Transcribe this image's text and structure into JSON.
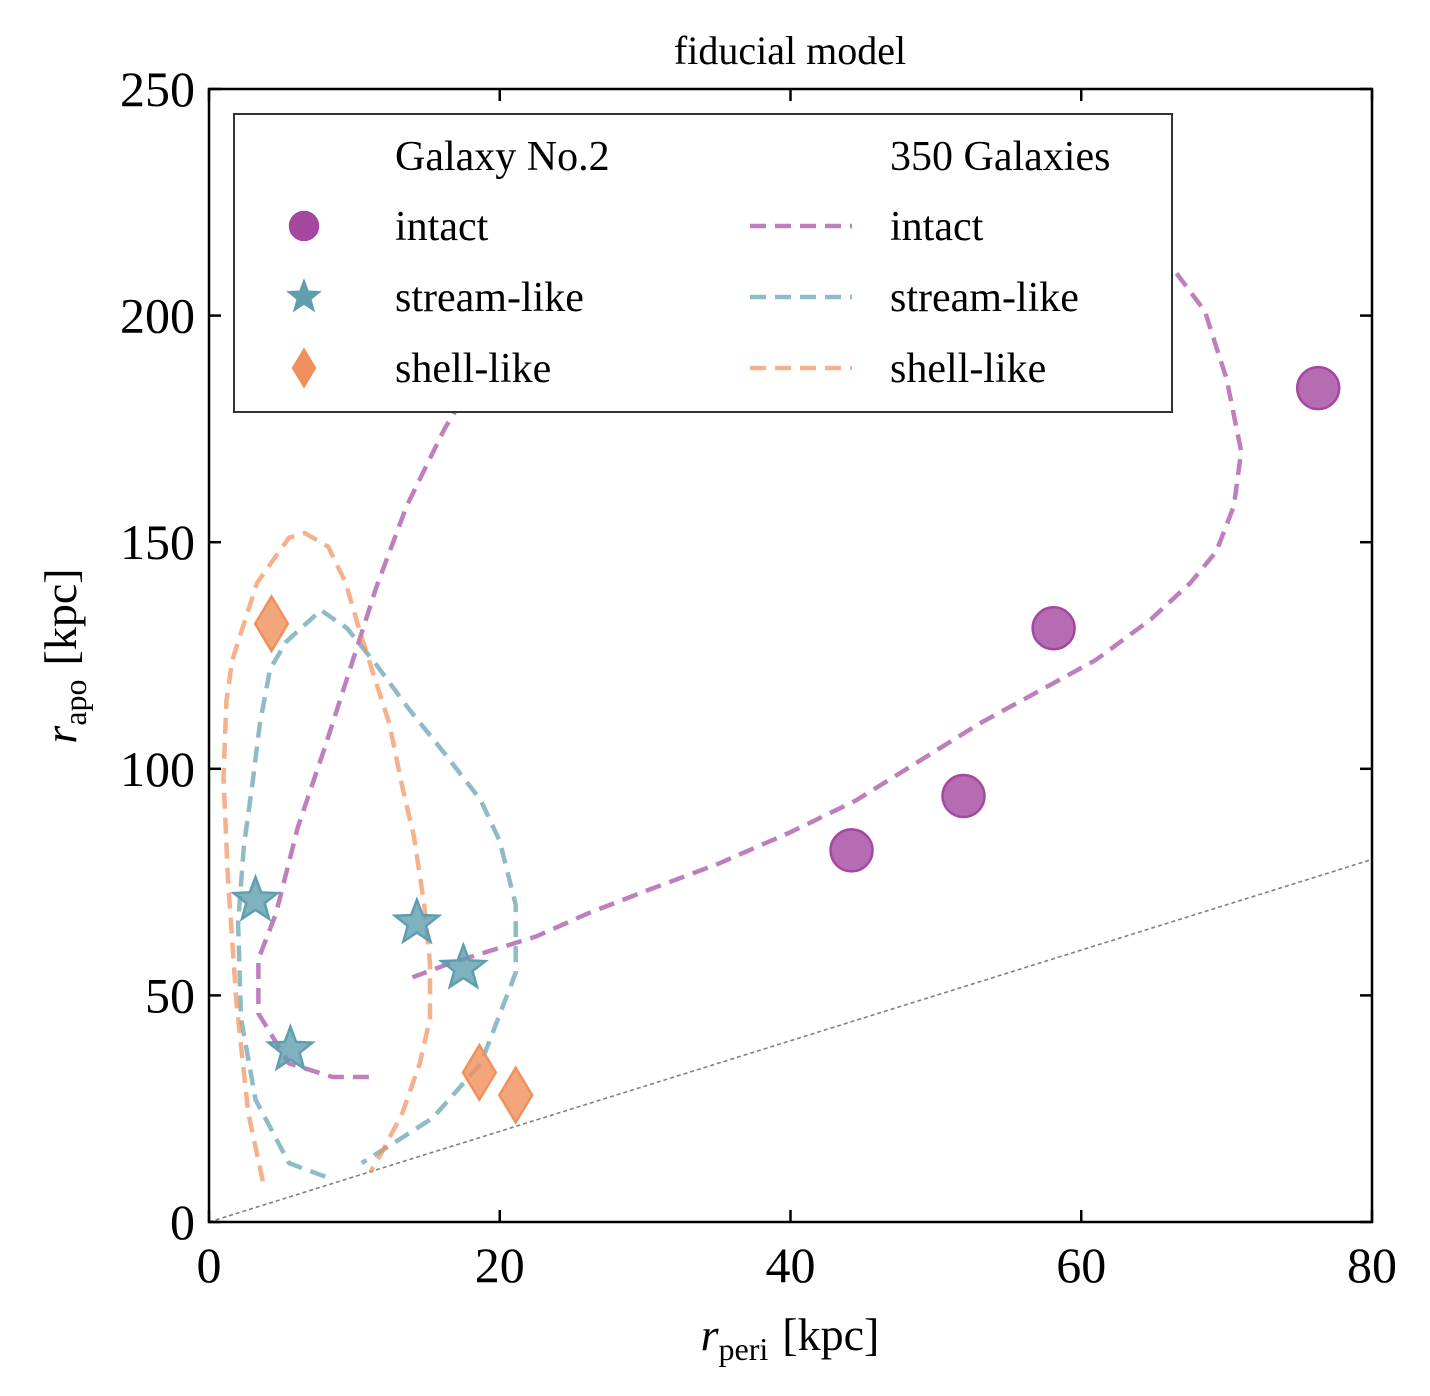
{
  "chart_data": {
    "type": "scatter",
    "title": "fiducial model",
    "xlabel": {
      "symbol": "r",
      "subscript": "peri",
      "unit": "[kpc]"
    },
    "ylabel": {
      "symbol": "r",
      "subscript": "apo",
      "unit": "[kpc]"
    },
    "xlim": [
      0,
      80
    ],
    "ylim": [
      0,
      250
    ],
    "xticks": [
      0,
      20,
      40,
      60,
      80
    ],
    "yticks": [
      0,
      50,
      100,
      150,
      200,
      250
    ],
    "grid": false,
    "legend": {
      "placement": "top-left",
      "columns": [
        {
          "header": "Galaxy No.2",
          "entries": [
            "intact",
            "stream-like",
            "shell-like"
          ]
        },
        {
          "header": "350 Galaxies",
          "entries": [
            "intact",
            "stream-like",
            "shell-like"
          ]
        }
      ]
    },
    "colors": {
      "intact": "#a4479f",
      "stream": "#5f9eaf",
      "shell": "#f0905a",
      "reference": "#808080"
    },
    "reference_line": {
      "style": "dotted",
      "points": [
        [
          0,
          0
        ],
        [
          80,
          80
        ]
      ]
    },
    "scatter_series": [
      {
        "name": "intact",
        "marker": "circle",
        "color": "#a4479f",
        "points": [
          [
            44.2,
            82
          ],
          [
            51.9,
            94
          ],
          [
            58.1,
            131
          ],
          [
            76.3,
            184
          ]
        ]
      },
      {
        "name": "stream-like",
        "marker": "star",
        "color": "#5f9eaf",
        "points": [
          [
            3.2,
            71
          ],
          [
            14.3,
            66
          ],
          [
            17.5,
            56
          ],
          [
            5.6,
            38
          ]
        ]
      },
      {
        "name": "shell-like",
        "marker": "diamond",
        "color": "#f0905a",
        "points": [
          [
            4.3,
            132
          ],
          [
            18.6,
            33
          ],
          [
            21.1,
            28
          ]
        ]
      }
    ],
    "contour_series": [
      {
        "name": "intact",
        "style": "dashed",
        "color": "#a4479f",
        "points": [
          [
            11,
            32
          ],
          [
            8.5,
            32
          ],
          [
            5.5,
            35
          ],
          [
            3.4,
            46
          ],
          [
            3.4,
            58
          ],
          [
            4.6,
            68
          ],
          [
            6.1,
            87
          ],
          [
            8,
            105
          ],
          [
            10,
            125
          ],
          [
            11.5,
            140
          ],
          [
            13.6,
            158
          ],
          [
            16.2,
            175
          ],
          [
            19,
            190
          ],
          [
            22,
            204
          ],
          [
            26,
            216
          ],
          [
            30,
            223
          ],
          [
            36,
            228
          ],
          [
            42,
            230
          ],
          [
            49,
            230.5
          ],
          [
            55,
            229
          ],
          [
            61,
            225
          ],
          [
            65,
            216
          ],
          [
            68.5,
            201
          ],
          [
            70,
            186
          ],
          [
            71,
            170
          ],
          [
            70.5,
            158
          ],
          [
            69.3,
            148
          ],
          [
            67.5,
            141
          ],
          [
            64.8,
            133
          ],
          [
            61,
            124
          ],
          [
            57,
            117
          ],
          [
            53,
            110
          ],
          [
            48.5,
            101
          ],
          [
            44.5,
            93
          ],
          [
            40,
            86
          ],
          [
            35,
            79
          ],
          [
            30,
            73
          ],
          [
            26,
            68
          ],
          [
            22.5,
            63
          ],
          [
            19.5,
            60
          ],
          [
            16.5,
            57
          ],
          [
            14,
            54
          ]
        ]
      },
      {
        "name": "stream-like",
        "style": "dashed",
        "color": "#5f9eaf",
        "points": [
          [
            8,
            10
          ],
          [
            5.5,
            13
          ],
          [
            3.2,
            27
          ],
          [
            2.2,
            45
          ],
          [
            2,
            66
          ],
          [
            2.4,
            83
          ],
          [
            3,
            97
          ],
          [
            3.5,
            110
          ],
          [
            4.2,
            122
          ],
          [
            5.3,
            128
          ],
          [
            7.7,
            135
          ],
          [
            9.5,
            131
          ],
          [
            11.5,
            123
          ],
          [
            13.8,
            113
          ],
          [
            16.3,
            103
          ],
          [
            18.7,
            93
          ],
          [
            20,
            84
          ],
          [
            21.1,
            70
          ],
          [
            21.1,
            55
          ],
          [
            18.7,
            35
          ],
          [
            15.4,
            23
          ],
          [
            13,
            18
          ],
          [
            10.5,
            13
          ]
        ]
      },
      {
        "name": "shell-like",
        "style": "dashed",
        "color": "#f0905a",
        "points": [
          [
            3.7,
            9
          ],
          [
            2.7,
            24
          ],
          [
            1.9,
            48
          ],
          [
            1.3,
            76
          ],
          [
            1,
            98
          ],
          [
            1.2,
            115
          ],
          [
            1.6,
            124
          ],
          [
            3.3,
            141
          ],
          [
            5.5,
            151
          ],
          [
            6.6,
            152
          ],
          [
            8.2,
            149
          ],
          [
            9.4,
            141
          ],
          [
            10.4,
            130
          ],
          [
            11.4,
            120
          ],
          [
            12.4,
            110
          ],
          [
            13.3,
            96
          ],
          [
            14.1,
            85
          ],
          [
            14.8,
            70
          ],
          [
            15.2,
            57
          ],
          [
            15.2,
            45
          ],
          [
            14.5,
            35
          ],
          [
            13.3,
            24
          ],
          [
            12,
            16
          ],
          [
            11.1,
            11
          ]
        ]
      }
    ]
  }
}
